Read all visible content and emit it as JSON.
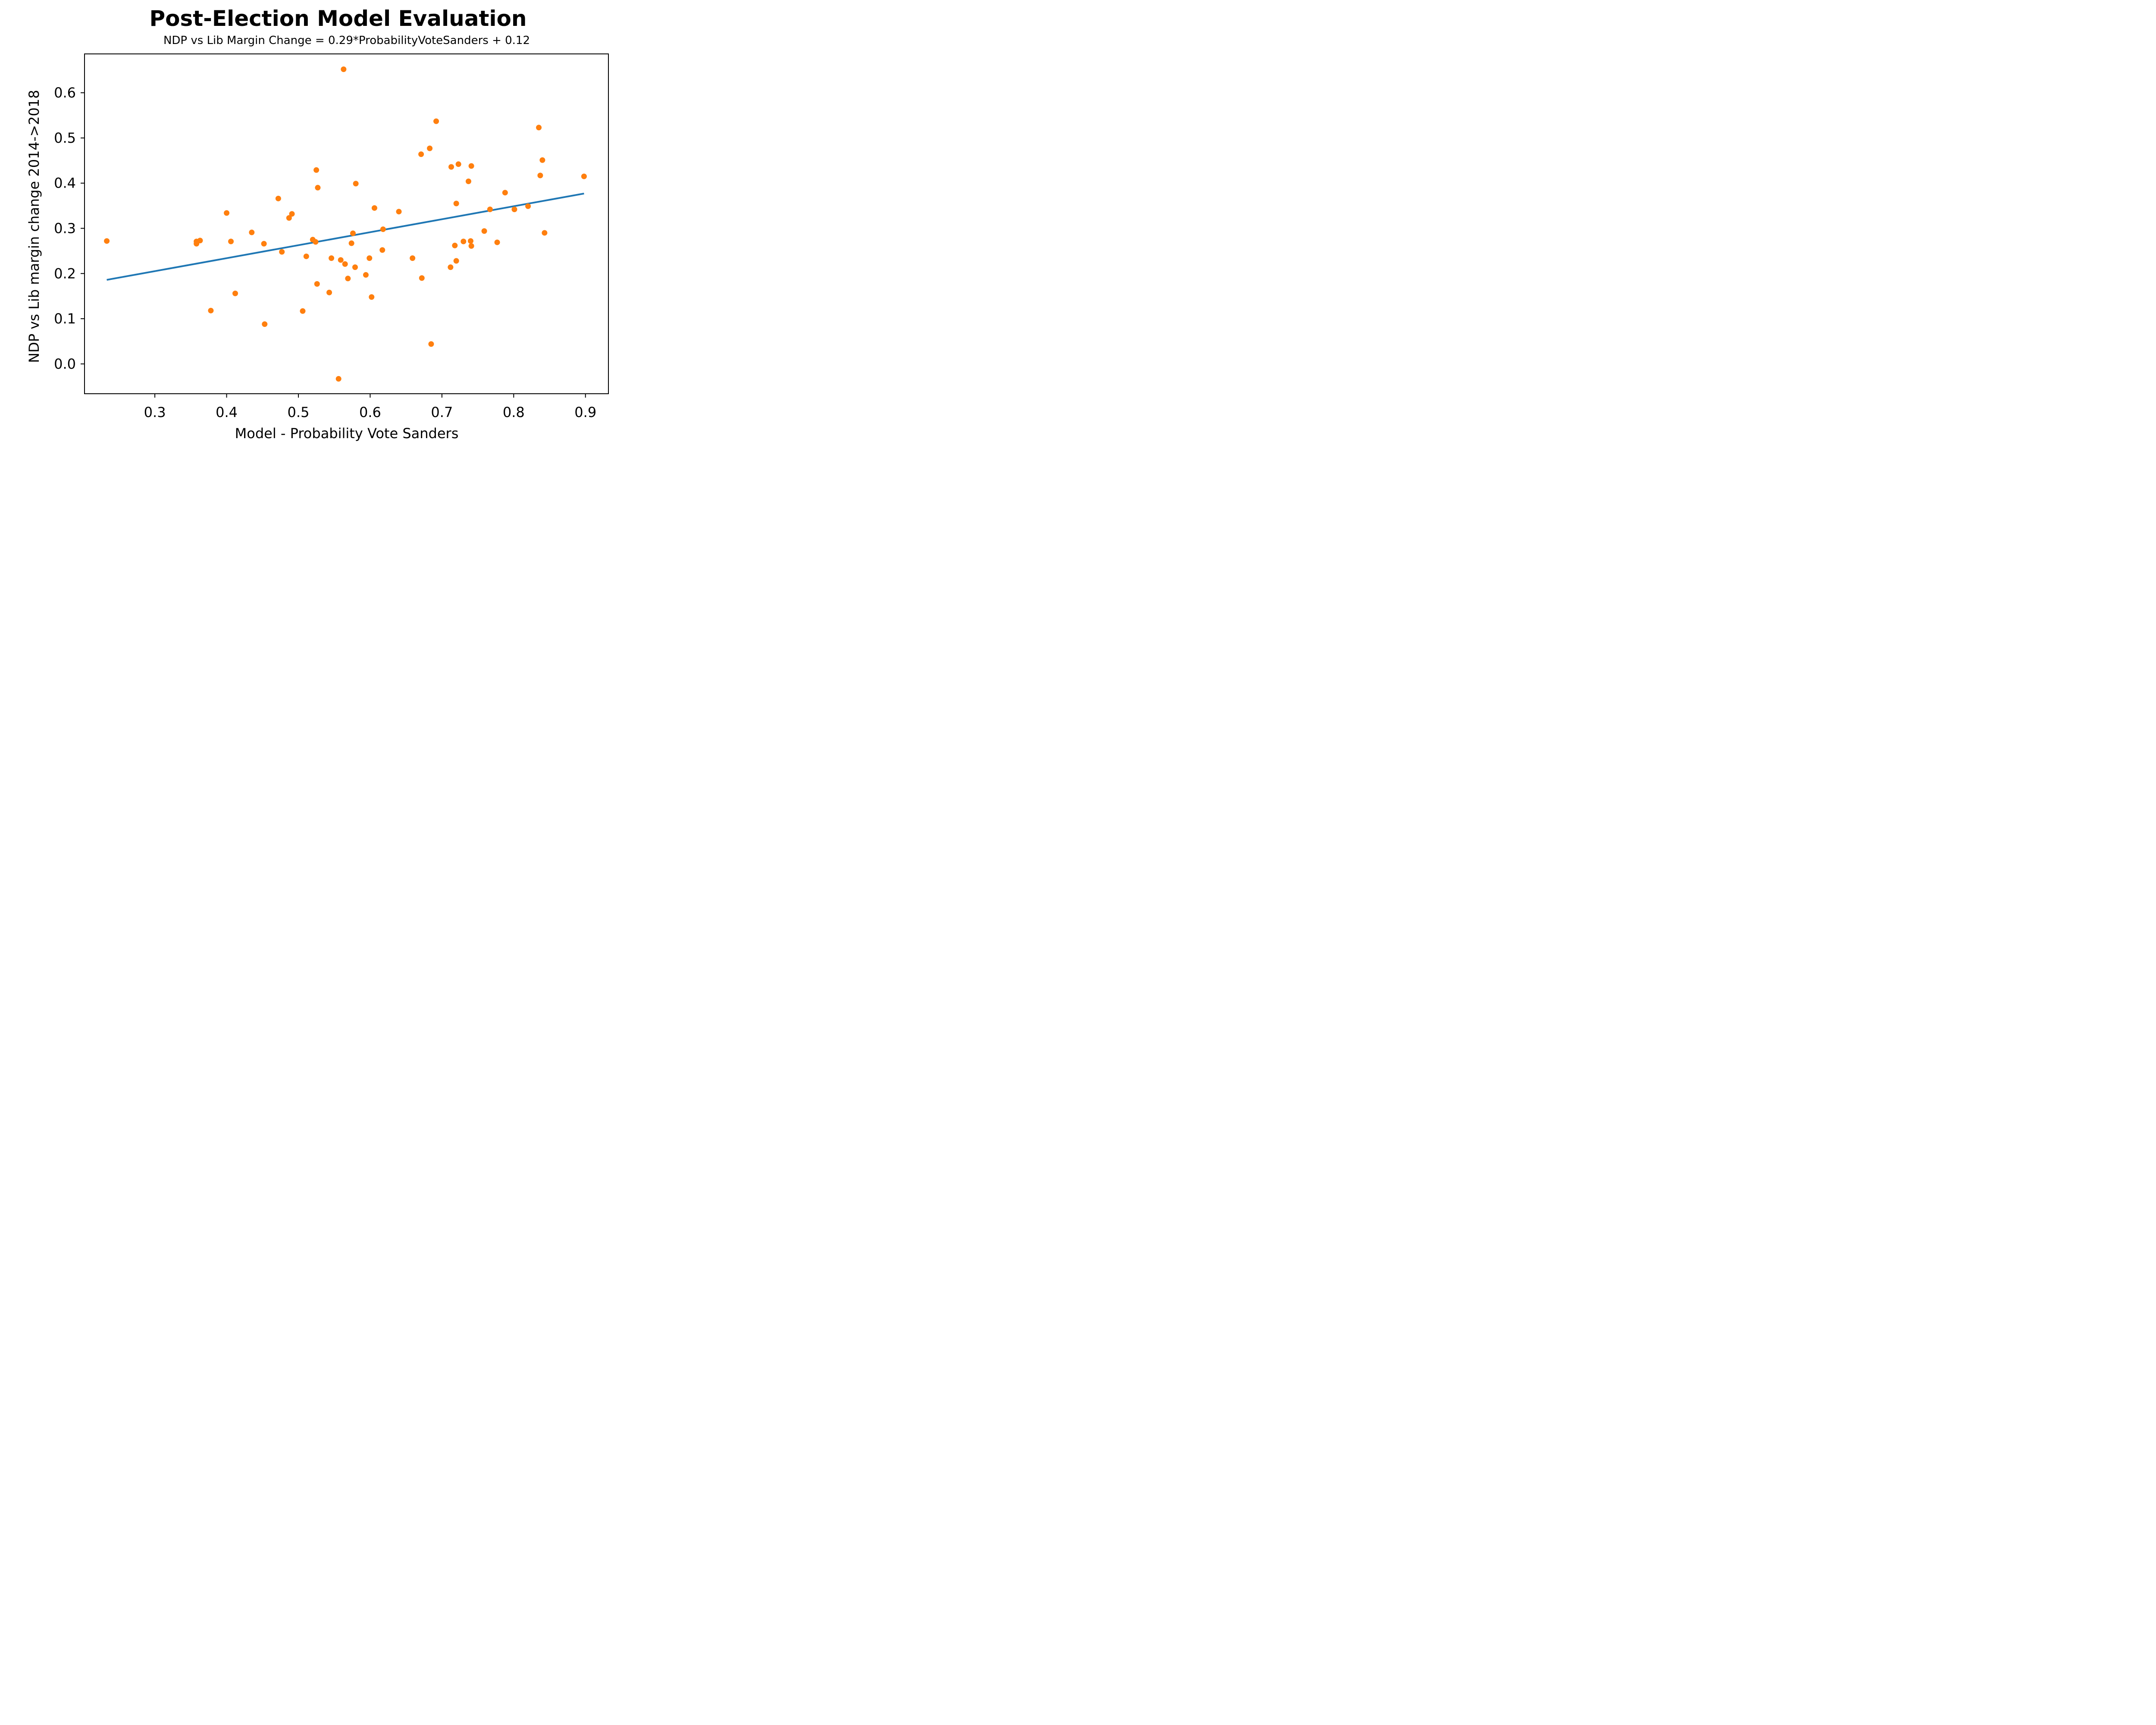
{
  "chart_data": {
    "type": "scatter",
    "title": "Post-Election Model Evaluation",
    "subtitle": "NDP vs Lib Margin Change = 0.29*ProbabilityVoteSanders + 0.12",
    "xlabel": "Model - Probability Vote Sanders",
    "ylabel": "NDP vs Lib margin change 2014->2018",
    "xlim": [
      0.202,
      0.932
    ],
    "ylim": [
      -0.066,
      0.686
    ],
    "xticks": [
      {
        "value": 0.3,
        "label": "0.3"
      },
      {
        "value": 0.4,
        "label": "0.4"
      },
      {
        "value": 0.5,
        "label": "0.5"
      },
      {
        "value": 0.6,
        "label": "0.6"
      },
      {
        "value": 0.7,
        "label": "0.7"
      },
      {
        "value": 0.8,
        "label": "0.8"
      },
      {
        "value": 0.9,
        "label": "0.9"
      }
    ],
    "yticks": [
      {
        "value": 0.0,
        "label": "0.0"
      },
      {
        "value": 0.1,
        "label": "0.1"
      },
      {
        "value": 0.2,
        "label": "0.2"
      },
      {
        "value": 0.3,
        "label": "0.3"
      },
      {
        "value": 0.4,
        "label": "0.4"
      },
      {
        "value": 0.5,
        "label": "0.5"
      },
      {
        "value": 0.6,
        "label": "0.6"
      }
    ],
    "grid": false,
    "series": [
      {
        "name": "ridings",
        "kind": "scatter",
        "color": "#ff7f0e",
        "points": [
          [
            0.233,
            0.272
          ],
          [
            0.358,
            0.271
          ],
          [
            0.358,
            0.266
          ],
          [
            0.363,
            0.273
          ],
          [
            0.378,
            0.118
          ],
          [
            0.4,
            0.334
          ],
          [
            0.406,
            0.271
          ],
          [
            0.412,
            0.156
          ],
          [
            0.435,
            0.291
          ],
          [
            0.452,
            0.266
          ],
          [
            0.453,
            0.088
          ],
          [
            0.472,
            0.366
          ],
          [
            0.477,
            0.248
          ],
          [
            0.487,
            0.323
          ],
          [
            0.491,
            0.332
          ],
          [
            0.506,
            0.117
          ],
          [
            0.511,
            0.238
          ],
          [
            0.52,
            0.275
          ],
          [
            0.524,
            0.27
          ],
          [
            0.525,
            0.429
          ],
          [
            0.526,
            0.177
          ],
          [
            0.527,
            0.39
          ],
          [
            0.543,
            0.158
          ],
          [
            0.546,
            0.234
          ],
          [
            0.556,
            -0.033
          ],
          [
            0.559,
            0.23
          ],
          [
            0.563,
            0.652
          ],
          [
            0.565,
            0.221
          ],
          [
            0.569,
            0.189
          ],
          [
            0.574,
            0.267
          ],
          [
            0.576,
            0.289
          ],
          [
            0.579,
            0.214
          ],
          [
            0.58,
            0.399
          ],
          [
            0.594,
            0.197
          ],
          [
            0.599,
            0.234
          ],
          [
            0.602,
            0.148
          ],
          [
            0.606,
            0.345
          ],
          [
            0.617,
            0.252
          ],
          [
            0.618,
            0.298
          ],
          [
            0.64,
            0.337
          ],
          [
            0.659,
            0.234
          ],
          [
            0.671,
            0.464
          ],
          [
            0.672,
            0.19
          ],
          [
            0.683,
            0.477
          ],
          [
            0.685,
            0.044
          ],
          [
            0.692,
            0.537
          ],
          [
            0.712,
            0.214
          ],
          [
            0.713,
            0.436
          ],
          [
            0.718,
            0.262
          ],
          [
            0.72,
            0.355
          ],
          [
            0.72,
            0.228
          ],
          [
            0.723,
            0.442
          ],
          [
            0.73,
            0.271
          ],
          [
            0.737,
            0.404
          ],
          [
            0.74,
            0.272
          ],
          [
            0.741,
            0.438
          ],
          [
            0.741,
            0.261
          ],
          [
            0.759,
            0.294
          ],
          [
            0.767,
            0.342
          ],
          [
            0.777,
            0.269
          ],
          [
            0.788,
            0.379
          ],
          [
            0.801,
            0.342
          ],
          [
            0.82,
            0.349
          ],
          [
            0.835,
            0.523
          ],
          [
            0.837,
            0.417
          ],
          [
            0.84,
            0.451
          ],
          [
            0.843,
            0.29
          ],
          [
            0.898,
            0.415
          ]
        ]
      },
      {
        "name": "fit",
        "kind": "line",
        "color": "#1f77b4",
        "points": [
          [
            0.233,
            0.186
          ],
          [
            0.898,
            0.377
          ]
        ]
      }
    ]
  }
}
